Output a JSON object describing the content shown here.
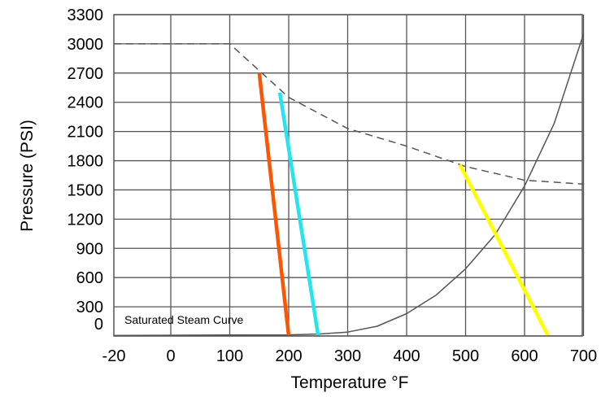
{
  "chart_data": {
    "type": "line",
    "title": "",
    "xlabel": "Temperature °F",
    "ylabel": "Pressure (PSI)",
    "xlim": [
      -20,
      700
    ],
    "ylim": [
      0,
      3300
    ],
    "grid": true,
    "x_ticks": [
      "-20",
      "0",
      "100",
      "200",
      "300",
      "400",
      "500",
      "600",
      "700"
    ],
    "y_ticks": [
      "3300",
      "3000",
      "2700",
      "2400",
      "2100",
      "1800",
      "1500",
      "1200",
      "900",
      "600",
      "300",
      "0"
    ],
    "annotations": [
      {
        "text": "Saturated Steam Curve",
        "x": 180,
        "y": 100
      }
    ],
    "series": [
      {
        "style": "dashed",
        "color": "#555555",
        "points": [
          [
            -20,
            3000
          ],
          [
            100,
            3000
          ],
          [
            200,
            2450
          ],
          [
            300,
            2130
          ],
          [
            400,
            1950
          ],
          [
            500,
            1740
          ],
          [
            600,
            1600
          ],
          [
            700,
            1560
          ]
        ]
      },
      {
        "style": "solid",
        "color": "#555555",
        "points": [
          [
            -20,
            5
          ],
          [
            100,
            10
          ],
          [
            200,
            12
          ],
          [
            250,
            20
          ],
          [
            300,
            40
          ],
          [
            350,
            100
          ],
          [
            400,
            230
          ],
          [
            450,
            420
          ],
          [
            500,
            690
          ],
          [
            550,
            1040
          ],
          [
            600,
            1540
          ],
          [
            650,
            2180
          ],
          [
            700,
            3100
          ]
        ]
      },
      {
        "style": "solid",
        "color": "#ff5500",
        "points": [
          [
            150,
            2700
          ],
          [
            200,
            0
          ]
        ]
      },
      {
        "style": "solid",
        "color": "#22e5f0",
        "points": [
          [
            185,
            2500
          ],
          [
            250,
            0
          ]
        ]
      },
      {
        "style": "solid",
        "color": "#ffff00",
        "points": [
          [
            490,
            1760
          ],
          [
            640,
            0
          ]
        ]
      }
    ]
  }
}
